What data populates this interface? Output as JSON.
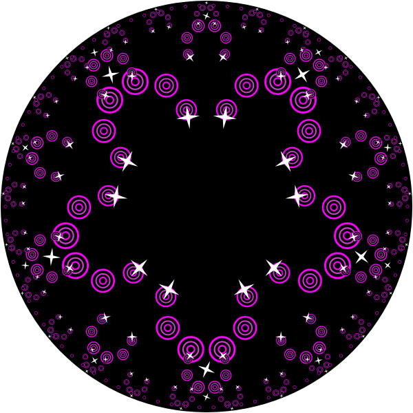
{
  "artwork": {
    "kind": "hyperbolic-tiling",
    "model": "poincare-disk",
    "symmetry_order": 5,
    "colors": {
      "background": "#ffffff",
      "disk": "#000000",
      "ring": "#ff00ff",
      "ring_inner": "#d040d0",
      "star": "#ffffff"
    },
    "motif": {
      "rings_per_arc": 6,
      "concentric_levels": 3,
      "star_points": 4
    }
  }
}
